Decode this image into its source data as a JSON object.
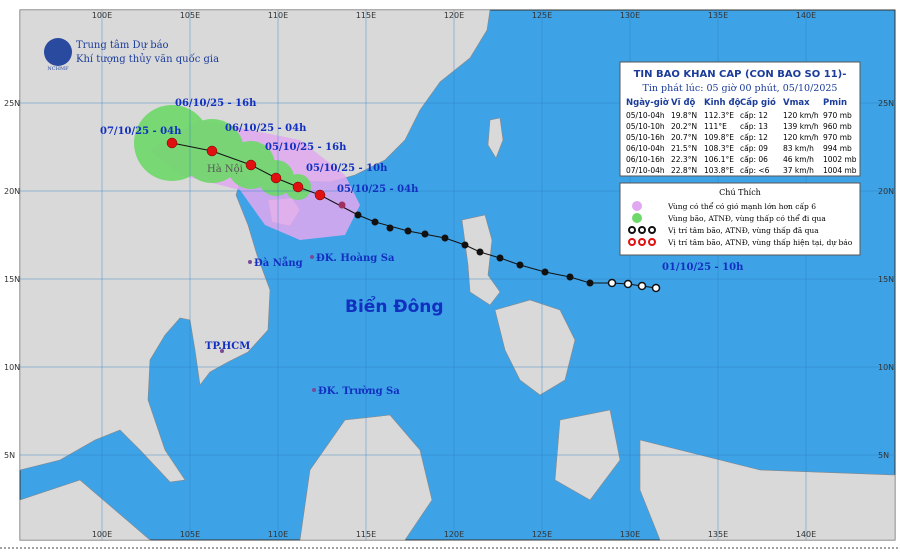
{
  "header": {
    "org": "Trung tâm Dự báo",
    "org_sub": "Khí tượng thủy văn quốc gia",
    "logo": "NCHMF"
  },
  "axes": {
    "lon_ticks": [
      {
        "value": 100,
        "label": "100E"
      },
      {
        "value": 105,
        "label": "105E"
      },
      {
        "value": 110,
        "label": "110E"
      },
      {
        "value": 115,
        "label": "115E"
      },
      {
        "value": 120,
        "label": "120E"
      },
      {
        "value": 125,
        "label": "125E"
      },
      {
        "value": 130,
        "label": "130E"
      },
      {
        "value": 135,
        "label": "135E"
      },
      {
        "value": 140,
        "label": "140E"
      }
    ],
    "lat_ticks": [
      {
        "value": 25,
        "label": "25N"
      },
      {
        "value": 20,
        "label": "20N"
      },
      {
        "value": 15,
        "label": "15N"
      },
      {
        "value": 10,
        "label": "10N"
      },
      {
        "value": 5,
        "label": "5N"
      }
    ]
  },
  "bulletin": {
    "title": "TIN BAO KHAN CAP (CON BAO SO 11)-",
    "issued": "Tin phát lúc: 05 giờ 00 phút, 05/10/2025",
    "columns": [
      "Ngày-giờ",
      "Vĩ độ",
      "Kinh độ",
      "Cấp gió",
      "Vmax",
      "Pmin"
    ],
    "rows": [
      [
        "05/10-04h",
        "19.8°N",
        "112.3°E",
        "cấp: 12",
        "120 km/h",
        "970 mb"
      ],
      [
        "05/10-10h",
        "20.2°N",
        "111°E",
        "cấp: 13",
        "139 km/h",
        "960 mb"
      ],
      [
        "05/10-16h",
        "20.7°N",
        "109.8°E",
        "cấp: 12",
        "120 km/h",
        "970 mb"
      ],
      [
        "06/10-04h",
        "21.5°N",
        "108.3°E",
        "cấp: 09",
        "83 km/h",
        "994 mb"
      ],
      [
        "06/10-16h",
        "22.3°N",
        "106.1°E",
        "cấp: 06",
        "46 km/h",
        "1002 mb"
      ],
      [
        "07/10-04h",
        "22.8°N",
        "103.8°E",
        "cấp: <6",
        "37 km/h",
        "1004 mb"
      ]
    ]
  },
  "legend": {
    "title": "Chú Thích",
    "items": [
      "Vùng có thể có gió mạnh lớn hơn cấp 6",
      "Vùng bão, ATNĐ, vùng thấp có thể đi qua",
      "Vị trí tâm bão, ATNĐ, vùng thấp đã qua",
      "Vị trí tâm bão, ATNĐ, vùng thấp hiện tại, dự báo"
    ]
  },
  "track_labels": [
    "06/10/25 - 16h",
    "07/10/25 - 04h",
    "06/10/25 - 04h",
    "05/10/25 - 16h",
    "05/10/25 - 10h",
    "05/10/25 - 04h",
    "01/10/25 - 10h"
  ],
  "places": [
    "Hà Nội",
    "Đà Nẵng",
    "ĐK. Hoàng Sa",
    "Biển Đông",
    "TP.HCM",
    "ĐK. Trường Sa"
  ]
}
